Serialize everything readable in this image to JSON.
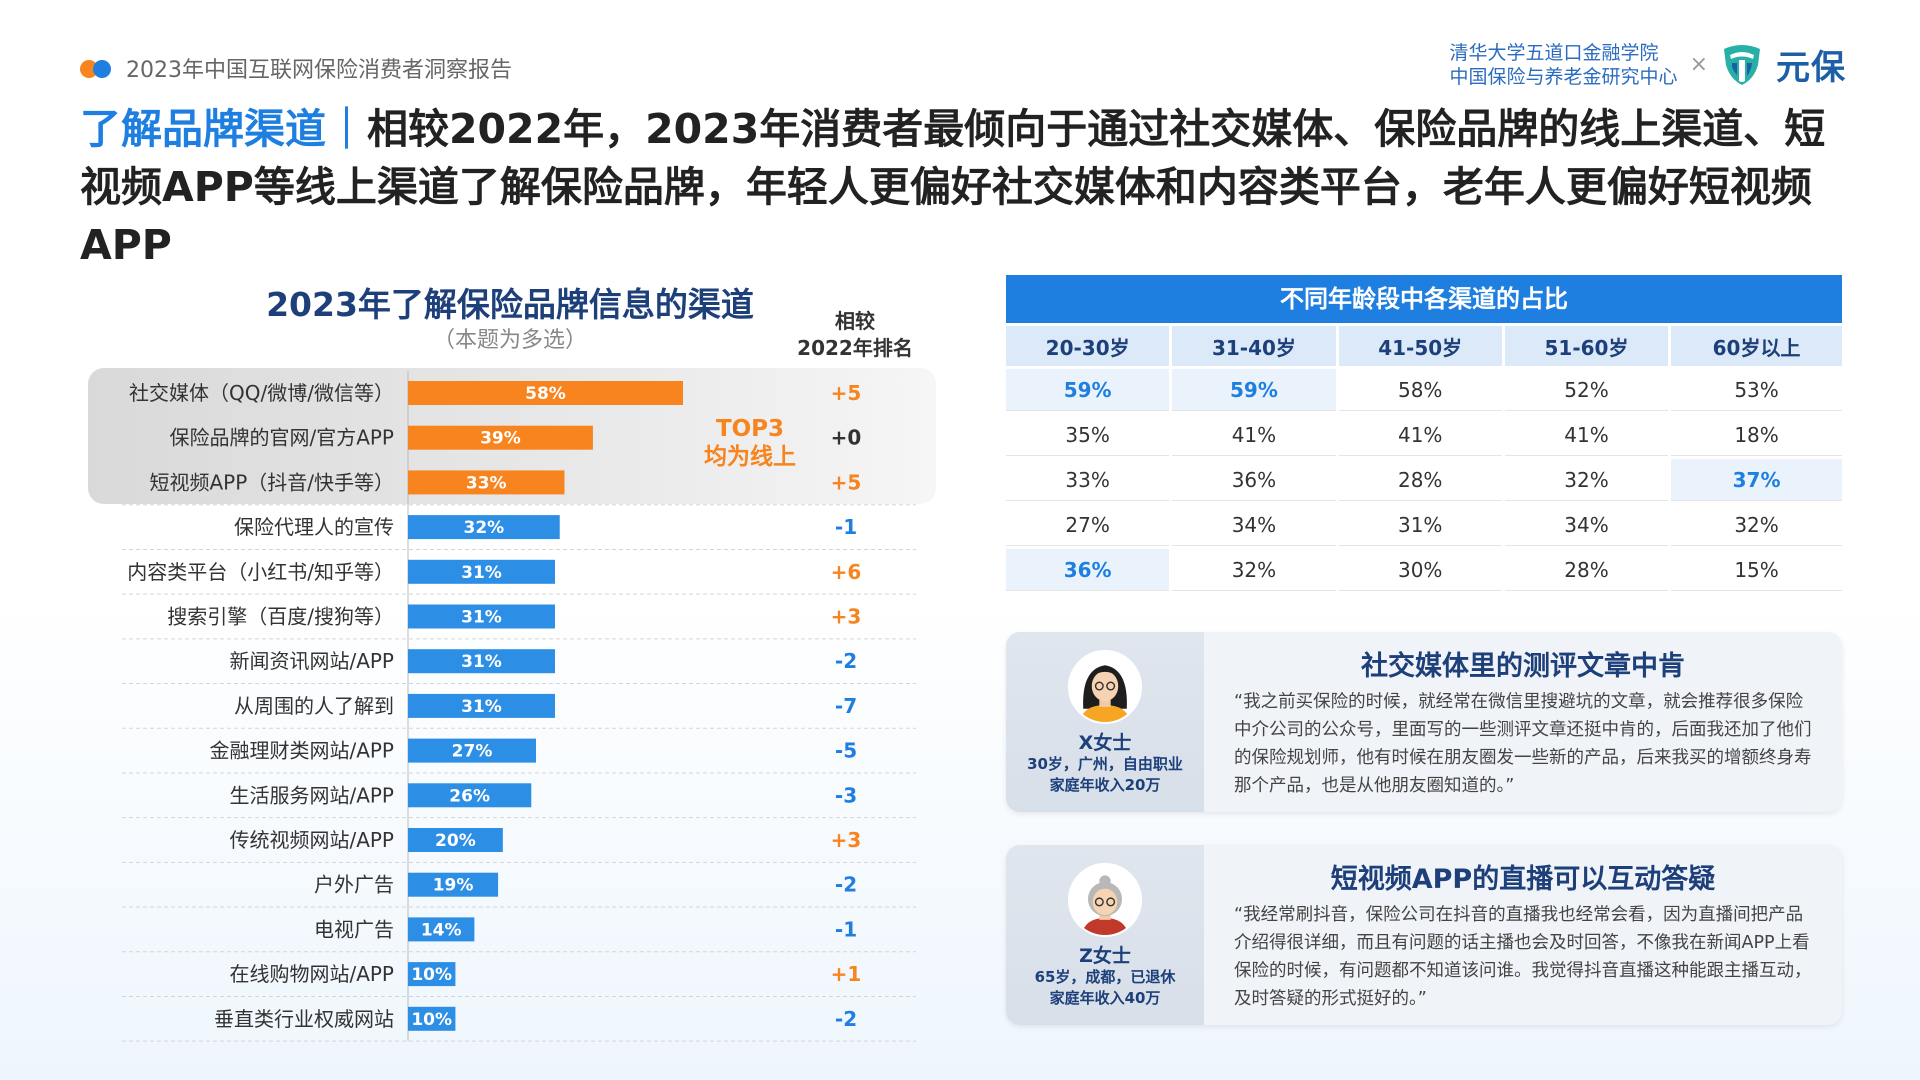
{
  "header": {
    "report_title": "2023年中国互联网保险消费者洞察报告",
    "institution_line1": "清华大学五道口金融学院",
    "institution_line2": "中国保险与养老金研究中心",
    "cross": "×",
    "brand": "元保"
  },
  "headline": {
    "highlight": "了解品牌渠道",
    "separator": "｜",
    "text": "相较2022年，2023年消费者最倾向于通过社交媒体、保险品牌的线上渠道、短视频APP等线上渠道了解保险品牌，年轻人更偏好社交媒体和内容类平台，老年人更偏好短视频APP"
  },
  "left_chart": {
    "rank_header_line1": "相较",
    "rank_header_line2": "2022年排名",
    "top3_line1": "TOP3",
    "top3_line2": "均为线上"
  },
  "chart_data": [
    {
      "type": "bar",
      "orientation": "horizontal",
      "title": "2023年了解保险品牌信息的渠道",
      "subtitle": "（本题为多选）",
      "categories": [
        "社交媒体（QQ/微博/微信等）",
        "保险品牌的官网/官方APP",
        "短视频APP（抖音/快手等）",
        "保险代理人的宣传",
        "内容类平台（小红书/知乎等）",
        "搜索引擎（百度/搜狗等）",
        "新闻资讯网站/APP",
        "从周围的人了解到",
        "金融理财类网站/APP",
        "生活服务网站/APP",
        "传统视频网站/APP",
        "户外广告",
        "电视广告",
        "在线购物网站/APP",
        "垂直类行业权威网站"
      ],
      "values": [
        58,
        39,
        33,
        32,
        31,
        31,
        31,
        31,
        27,
        26,
        20,
        19,
        14,
        10,
        10
      ],
      "value_labels": [
        "58%",
        "39%",
        "33%",
        "32%",
        "31%",
        "31%",
        "31%",
        "31%",
        "27%",
        "26%",
        "20%",
        "19%",
        "14%",
        "10%",
        "10%"
      ],
      "rank_change": [
        "+5",
        "+0",
        "+5",
        "-1",
        "+6",
        "+3",
        "-2",
        "-7",
        "-5",
        "-3",
        "+3",
        "-2",
        "-1",
        "+1",
        "-2"
      ],
      "highlight_top": 3,
      "colors": {
        "top": "#f7841e",
        "rest": "#2d8ee6",
        "rank_up": "#f7841e",
        "rank_down": "#1f7fe0",
        "rank_zero": "#333333"
      }
    },
    {
      "type": "table",
      "title": "不同年龄段中各渠道的占比",
      "columns": [
        "20-30岁",
        "31-40岁",
        "41-50岁",
        "51-60岁",
        "60岁以上"
      ],
      "rows": [
        {
          "values": [
            "59%",
            "59%",
            "58%",
            "52%",
            "53%"
          ],
          "highlight": [
            0,
            1
          ]
        },
        {
          "values": [
            "35%",
            "41%",
            "41%",
            "41%",
            "18%"
          ],
          "highlight": []
        },
        {
          "values": [
            "33%",
            "36%",
            "28%",
            "32%",
            "37%"
          ],
          "highlight": [
            4
          ]
        },
        {
          "values": [
            "27%",
            "34%",
            "31%",
            "34%",
            "32%"
          ],
          "highlight": []
        },
        {
          "values": [
            "36%",
            "32%",
            "30%",
            "28%",
            "15%"
          ],
          "highlight": [
            0
          ]
        }
      ]
    }
  ],
  "quotes": [
    {
      "name": "X女士",
      "info_line1": "30岁，广州，自由职业",
      "info_line2": "家庭年收入20万",
      "title": "社交媒体里的测评文章中肯",
      "text": "“我之前买保险的时候，就经常在微信里搜避坑的文章，就会推荐很多保险中介公司的公众号，里面写的一些测评文章还挺中肯的，后面我还加了他们的保险规划师，他有时候在朋友圈发一些新的产品，后来我买的增额终身寿那个产品，也是从他朋友圈知道的。”"
    },
    {
      "name": "Z女士",
      "info_line1": "65岁，成都，已退休",
      "info_line2": "家庭年收入40万",
      "title": "短视频APP的直播可以互动答疑",
      "text": "“我经常刷抖音，保险公司在抖音的直播我也经常会看，因为直播间把产品介绍得很详细，而且有问题的话主播也会及时回答，不像我在新闻APP上看保险的时候，有问题都不知道该问谁。我觉得抖音直播这种能跟主播互动，及时答疑的形式挺好的。”"
    }
  ]
}
